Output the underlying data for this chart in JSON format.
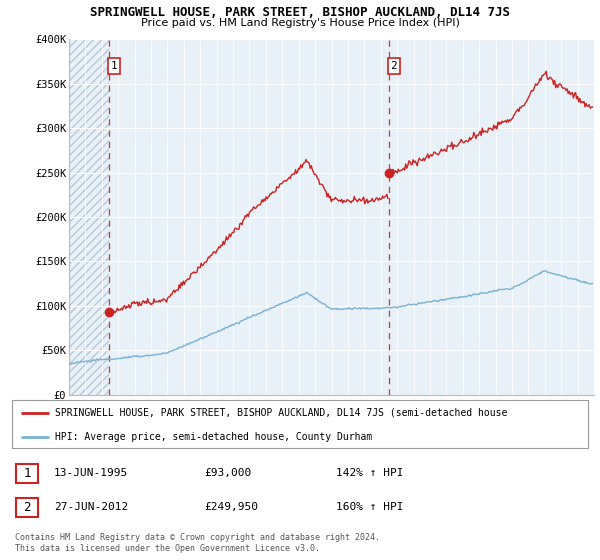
{
  "title": "SPRINGWELL HOUSE, PARK STREET, BISHOP AUCKLAND, DL14 7JS",
  "subtitle": "Price paid vs. HM Land Registry's House Price Index (HPI)",
  "legend_line1": "SPRINGWELL HOUSE, PARK STREET, BISHOP AUCKLAND, DL14 7JS (semi-detached house",
  "legend_line2": "HPI: Average price, semi-detached house, County Durham",
  "sale1_date": "13-JUN-1995",
  "sale1_price": 93000,
  "sale1_hpi": "142% ↑ HPI",
  "sale1_label": "1",
  "sale2_date": "27-JUN-2012",
  "sale2_price": 249950,
  "sale2_hpi": "160% ↑ HPI",
  "sale2_label": "2",
  "footer": "Contains HM Land Registry data © Crown copyright and database right 2024.\nThis data is licensed under the Open Government Licence v3.0.",
  "ylim": [
    0,
    400000
  ],
  "ytick_vals": [
    0,
    50000,
    100000,
    150000,
    200000,
    250000,
    300000,
    350000,
    400000
  ],
  "ytick_labels": [
    "£0",
    "£50K",
    "£100K",
    "£150K",
    "£200K",
    "£250K",
    "£300K",
    "£350K",
    "£400K"
  ],
  "hpi_color": "#7ab3d4",
  "price_color": "#cc2222",
  "vline_color": "#cc2222",
  "plot_bg": "#e8f0f8",
  "hatch_color": "#b8c8d8",
  "grid_color": "#c8d8e8",
  "sale1_x": 1995.45,
  "sale2_x": 2012.49,
  "xmin": 1993,
  "xmax": 2025,
  "xtick_years": [
    1993,
    1994,
    1995,
    1996,
    1997,
    1998,
    1999,
    2000,
    2001,
    2002,
    2003,
    2004,
    2005,
    2006,
    2007,
    2008,
    2009,
    2010,
    2011,
    2012,
    2013,
    2014,
    2015,
    2016,
    2017,
    2018,
    2019,
    2020,
    2021,
    2022,
    2023,
    2024
  ]
}
